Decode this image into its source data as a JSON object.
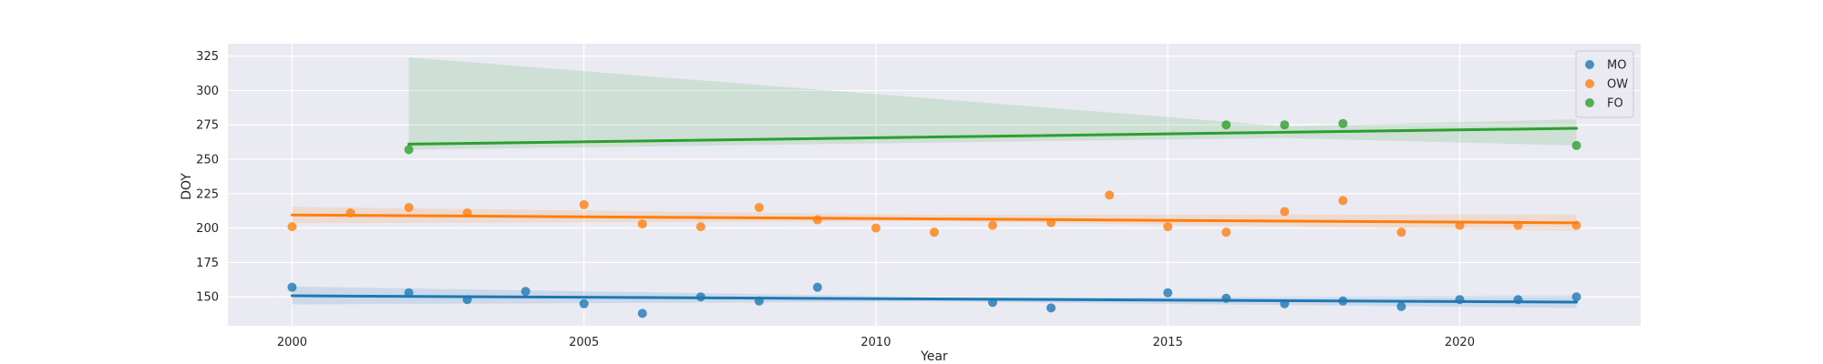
{
  "chart_data": {
    "type": "scatter",
    "xlabel": "Year",
    "ylabel": "DOY",
    "xlim": [
      1998.9,
      2023.1
    ],
    "ylim": [
      129,
      334
    ],
    "xticks": [
      2000,
      2005,
      2010,
      2015,
      2020
    ],
    "yticks": [
      150,
      175,
      200,
      225,
      250,
      275,
      300,
      325
    ],
    "grid": true,
    "legend": "top-right",
    "series": [
      {
        "name": "MO",
        "color": "#1f77b4",
        "x": [
          2000,
          2002,
          2003,
          2004,
          2005,
          2006,
          2007,
          2008,
          2009,
          2012,
          2013,
          2015,
          2016,
          2017,
          2018,
          2019,
          2020,
          2021,
          2022
        ],
        "y": [
          157,
          153,
          148,
          154,
          145,
          138,
          150,
          147,
          157,
          146,
          142,
          153,
          149,
          145,
          147,
          143,
          148,
          148,
          150
        ],
        "trend": [
          [
            2000,
            150.8
          ],
          [
            2022,
            146.2
          ]
        ],
        "band": [
          [
            2000,
            144.5,
            157.5
          ],
          [
            2011,
            146.5,
            150
          ],
          [
            2022,
            142,
            151
          ]
        ]
      },
      {
        "name": "OW",
        "color": "#ff7f0e",
        "x": [
          2000,
          2001,
          2002,
          2003,
          2005,
          2006,
          2007,
          2008,
          2009,
          2010,
          2011,
          2012,
          2013,
          2014,
          2015,
          2016,
          2017,
          2018,
          2019,
          2020,
          2021,
          2022
        ],
        "y": [
          201,
          211,
          215,
          211,
          217,
          203,
          201,
          215,
          206,
          200,
          197,
          202,
          204,
          224,
          201,
          197,
          212,
          220,
          197,
          202,
          202,
          202
        ],
        "trend": [
          [
            2000,
            209.5
          ],
          [
            2022,
            203.8
          ]
        ],
        "band": [
          [
            2000,
            203.5,
            215.5
          ],
          [
            2011,
            205,
            209.5
          ],
          [
            2022,
            198,
            210
          ]
        ]
      },
      {
        "name": "FO",
        "color": "#2ca02c",
        "x": [
          2002,
          2016,
          2017,
          2018,
          2022
        ],
        "y": [
          257,
          275,
          275,
          276,
          260
        ],
        "trend": [
          [
            2002,
            261
          ],
          [
            2022,
            272.5
          ]
        ],
        "band": [
          [
            2002,
            257,
            324
          ],
          [
            2017,
            265.5,
            274
          ],
          [
            2022,
            260,
            279
          ]
        ]
      }
    ]
  }
}
